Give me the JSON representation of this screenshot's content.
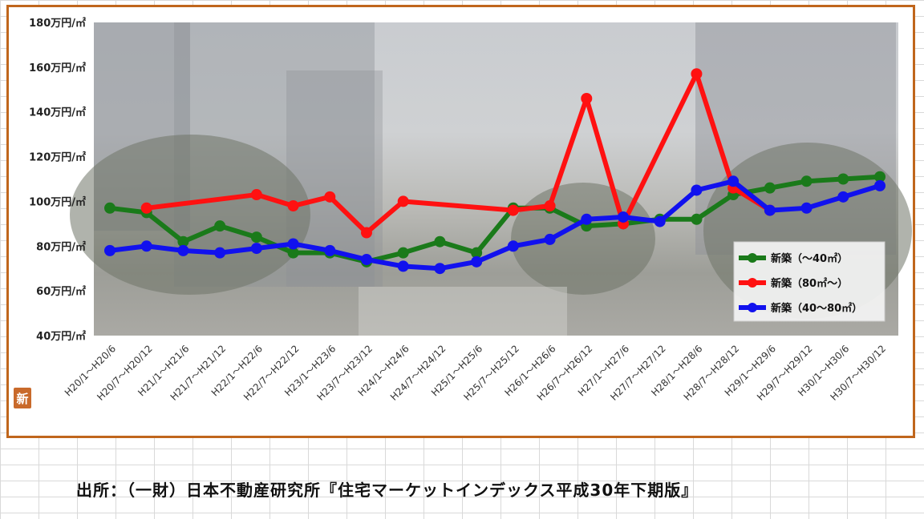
{
  "chart_data": {
    "type": "line",
    "ylim": [
      40,
      180
    ],
    "yticks": [
      "40万円/㎡",
      "60万円/㎡",
      "80万円/㎡",
      "100万円/㎡",
      "120万円/㎡",
      "140万円/㎡",
      "160万円/㎡",
      "180万円/㎡"
    ],
    "ytick_values": [
      40,
      60,
      80,
      100,
      120,
      140,
      160,
      180
    ],
    "categories": [
      "H20/1～H20/6",
      "H20/7～H20/12",
      "H21/1～H21/6",
      "H21/7～H21/12",
      "H22/1～H22/6",
      "H22/7～H22/12",
      "H23/1～H23/6",
      "H23/7～H23/12",
      "H24/1～H24/6",
      "H24/7～H24/12",
      "H25/1～H25/6",
      "H25/7～H25/12",
      "H26/1～H26/6",
      "H26/7～H26/12",
      "H27/1～H27/6",
      "H27/7～H27/12",
      "H28/1～H28/6",
      "H28/7～H28/12",
      "H29/1～H29/6",
      "H29/7～H29/12",
      "H30/1～H30/6",
      "H30/7～H30/12"
    ],
    "legend_position": "bottom-right",
    "series": [
      {
        "name": "新築（～40㎡）",
        "color": "#1a7a1a",
        "values": [
          97,
          95,
          82,
          89,
          84,
          77,
          77,
          73,
          77,
          82,
          77,
          97,
          97,
          89,
          90,
          92,
          92,
          103,
          106,
          109,
          110,
          111
        ]
      },
      {
        "name": "新築（80㎡～）",
        "color": "#ff1111",
        "values": [
          null,
          97,
          null,
          null,
          103,
          98,
          102,
          86,
          100,
          null,
          null,
          96,
          98,
          146,
          90,
          null,
          157,
          106,
          96,
          null,
          null,
          null
        ]
      },
      {
        "name": "新築（40～80㎡）",
        "color": "#1111ee",
        "values": [
          78,
          80,
          78,
          77,
          79,
          81,
          78,
          74,
          71,
          70,
          73,
          80,
          83,
          92,
          93,
          91,
          105,
          109,
          96,
          97,
          102,
          107
        ]
      }
    ]
  },
  "source_note": "出所：（一財）日本不動産研究所『住宅マーケットインデックス平成30年下期版』",
  "logo_text": "新"
}
